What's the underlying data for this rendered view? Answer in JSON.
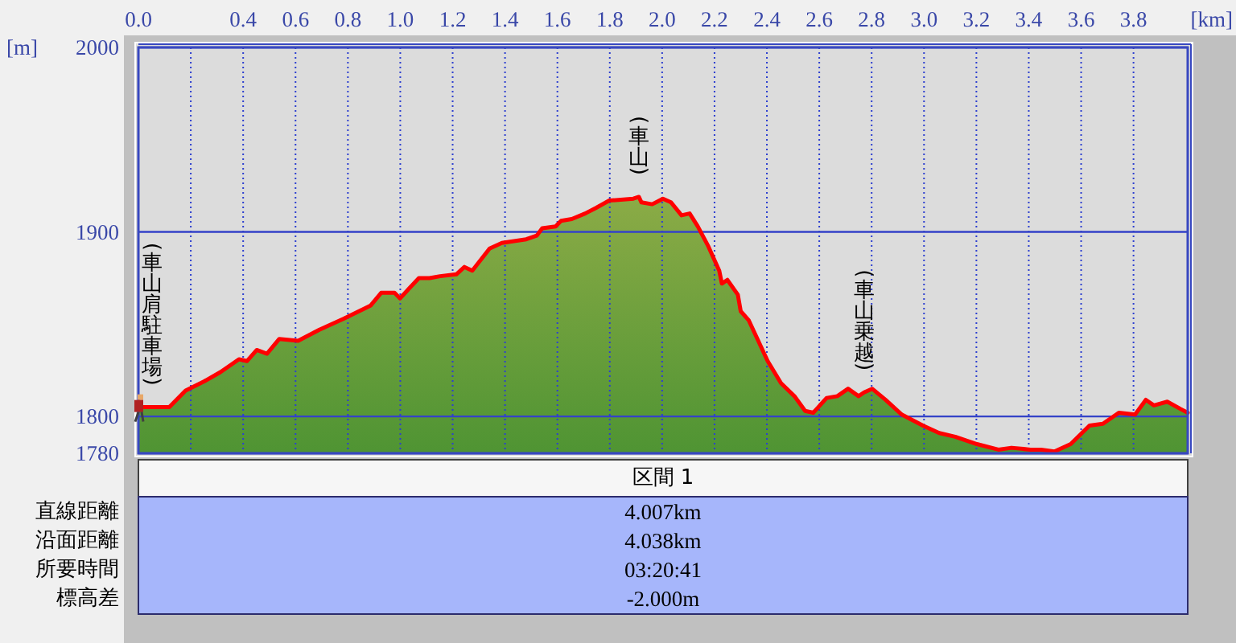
{
  "chart_data": {
    "type": "area",
    "xlabel": "[km]",
    "ylabel": "[m]",
    "x": [
      0,
      0.118,
      0.18,
      0.251,
      0.313,
      0.384,
      0.415,
      0.452,
      0.491,
      0.538,
      0.61,
      0.691,
      0.784,
      0.886,
      0.927,
      0.978,
      0.999,
      1.071,
      1.112,
      1.152,
      1.214,
      1.245,
      1.275,
      1.341,
      1.388,
      1.481,
      1.521,
      1.542,
      1.593,
      1.614,
      1.655,
      1.706,
      1.747,
      1.798,
      1.89,
      1.911,
      1.921,
      1.962,
      2.003,
      2.034,
      2.074,
      2.105,
      2.136,
      2.177,
      2.218,
      2.228,
      2.249,
      2.289,
      2.3,
      2.331,
      2.403,
      2.454,
      2.505,
      2.546,
      2.577,
      2.628,
      2.669,
      2.71,
      2.75,
      2.771,
      2.802,
      2.853,
      2.915,
      2.996,
      3.058,
      3.119,
      3.202,
      3.284,
      3.334,
      3.406,
      3.447,
      3.498,
      3.56,
      3.632,
      3.683,
      3.744,
      3.806,
      3.847,
      3.878,
      3.929,
      3.98,
      4.007
    ],
    "series": [
      {
        "color": "#6b9e3c",
        "values": [
          1805,
          1805,
          1814,
          1819,
          1824,
          1831,
          1830,
          1836,
          1834,
          1842,
          1841,
          1847,
          1853,
          1860,
          1867,
          1867,
          1864,
          1875,
          1875,
          1876,
          1877,
          1881,
          1879,
          1891,
          1894,
          1896,
          1898,
          1902,
          1903,
          1906,
          1907,
          1910,
          1913,
          1917,
          1918,
          1919,
          1916,
          1915,
          1918,
          1916,
          1909,
          1910,
          1903,
          1892,
          1879,
          1872,
          1874,
          1866,
          1857,
          1852,
          1830,
          1818,
          1811,
          1803,
          1802,
          1810,
          1811,
          1815,
          1811,
          1813,
          1815,
          1809,
          1801,
          1795,
          1791,
          1789,
          1785,
          1782,
          1783,
          1782,
          1782,
          1781,
          1785,
          1795,
          1796,
          1802,
          1801,
          1809,
          1806,
          1808,
          1804,
          1802
        ]
      }
    ],
    "xlim": [
      0,
      4.007
    ],
    "xticks": [
      {
        "value": 0,
        "label": "0.0"
      },
      {
        "value": 0.2,
        "label": null
      },
      0.4,
      0.6,
      0.8,
      {
        "value": 1,
        "label": "1.0"
      },
      1.2,
      1.4,
      1.6,
      1.8,
      {
        "value": 2,
        "label": "2.0"
      },
      2.2,
      2.4,
      2.6,
      2.8,
      {
        "value": 3,
        "label": "3.0"
      },
      3.2,
      3.4,
      3.6,
      3.8
    ],
    "ylim": [
      1780,
      2000
    ],
    "yticks": [
      1780,
      1800,
      1900,
      2000
    ],
    "grid": true,
    "annotations": [
      {
        "text": "(車山肩駐車場)",
        "x": 0,
        "y": 1805
      },
      {
        "text": "(車山)",
        "x": 1.911,
        "y": 1919
      },
      {
        "text": "(車山乗越)",
        "x": 2.771,
        "y": 1813
      },
      "区間 1",
      "直線距離",
      "4.007km",
      "沿面距離",
      "4.038km",
      "所要時間",
      "03:20:41",
      "標高差",
      "-2.000m"
    ]
  }
}
